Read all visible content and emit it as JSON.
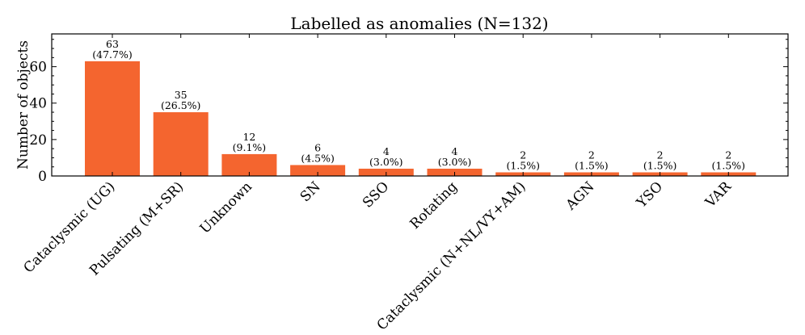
{
  "chart_data": {
    "type": "bar",
    "title": "Labelled as anomalies (N=132)",
    "xlabel": "",
    "ylabel": "Number of objects",
    "ylim": [
      0,
      78
    ],
    "yticks": [
      0,
      20,
      40,
      60
    ],
    "grid": false,
    "bar_color": "#f4652f",
    "categories": [
      "Cataclysmic (UG)",
      "Pulsating (M+SR)",
      "Unknown",
      "SN",
      "SSO",
      "Rotating",
      "Cataclysmic (N+NL/VY+AM)",
      "AGN",
      "YSO",
      "VAR"
    ],
    "values": [
      63,
      35,
      12,
      6,
      4,
      4,
      2,
      2,
      2,
      2
    ],
    "percent_labels": [
      "(47.7%)",
      "(26.5%)",
      "(9.1%)",
      "(4.5%)",
      "(3.0%)",
      "(3.0%)",
      "(1.5%)",
      "(1.5%)",
      "(1.5%)",
      "(1.5%)"
    ]
  }
}
